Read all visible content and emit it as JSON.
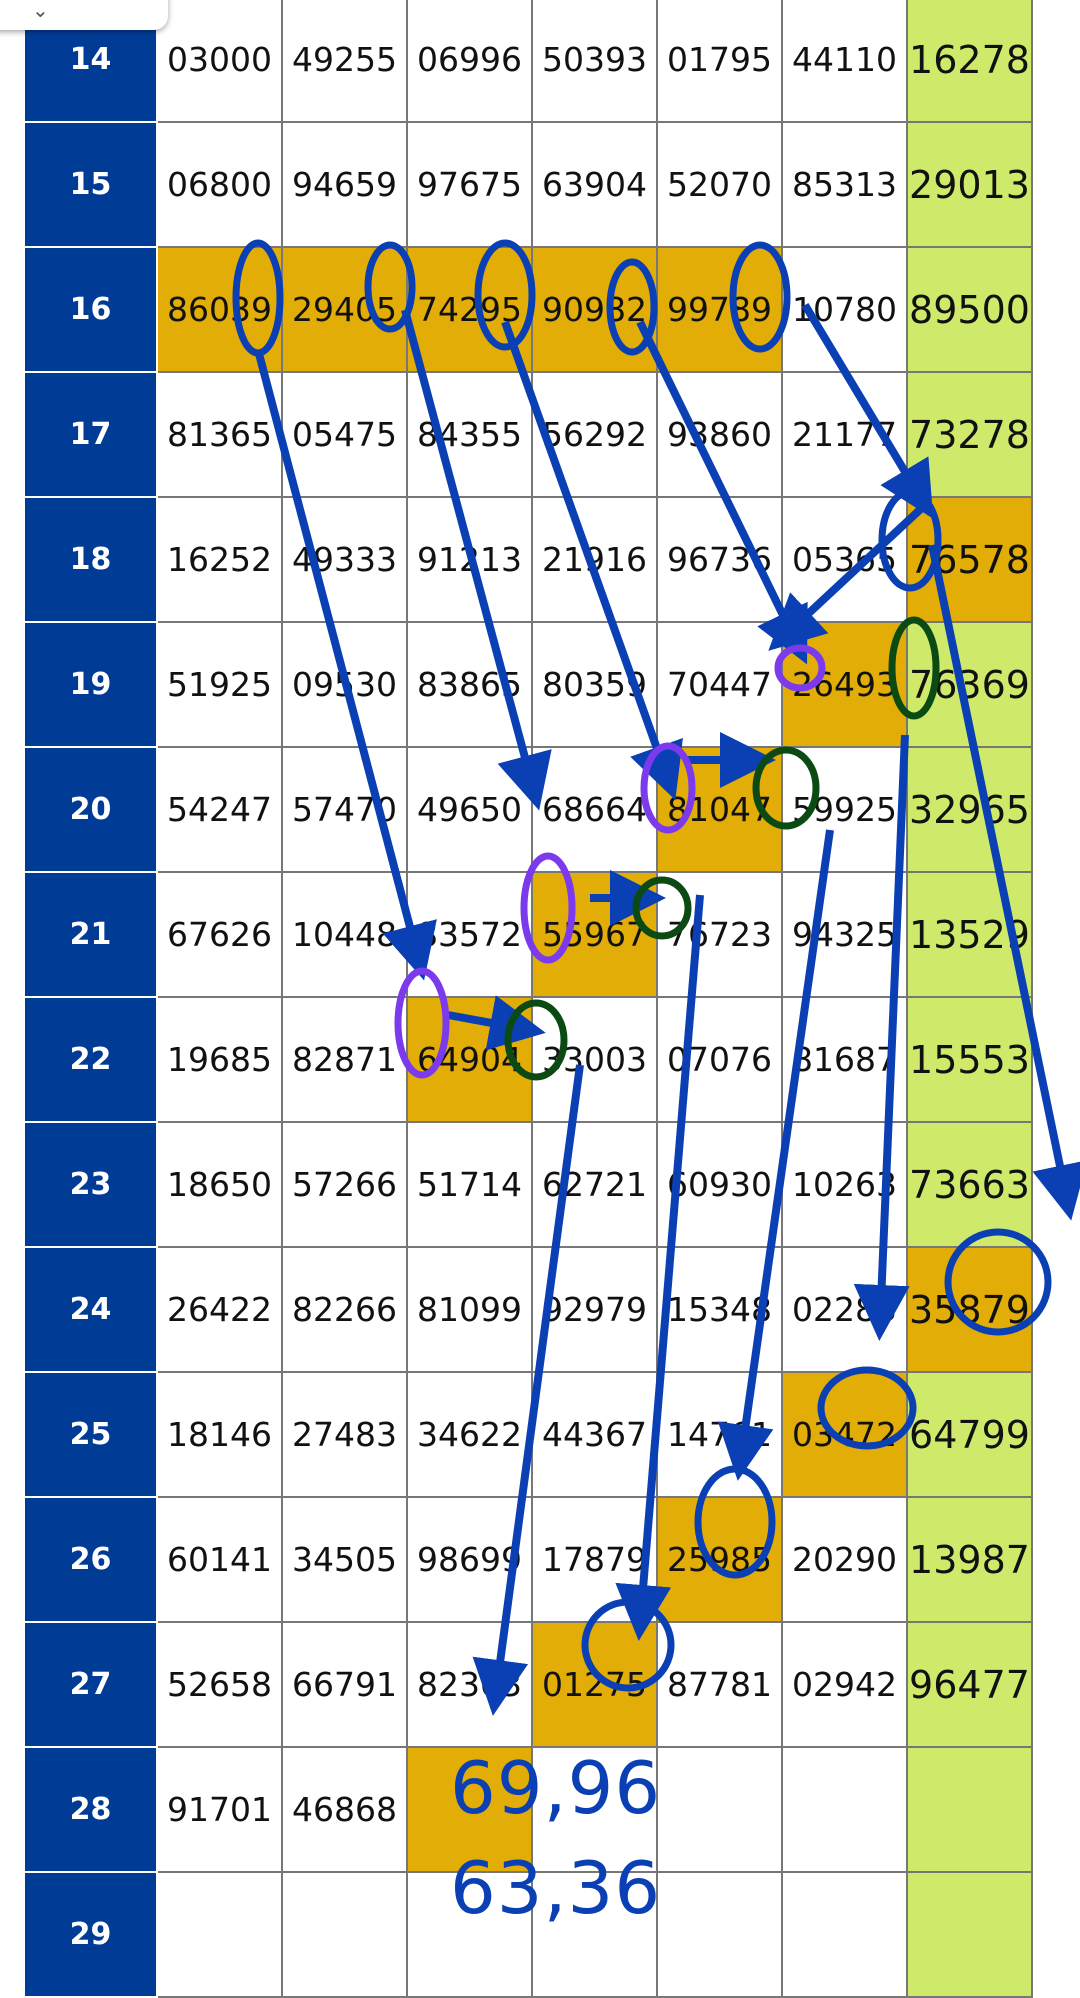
{
  "colors": {
    "row_header": "#003C96",
    "result_column": "#CFEA6B",
    "highlight": "#E2AD06",
    "arrow_blue": "#0B40B5",
    "circle_purple": "#7C3AED",
    "circle_green": "#0B4A12"
  },
  "overlay_icon": "chevron-down-icon",
  "rows": [
    {
      "label": "14",
      "values": [
        "03000",
        "49255",
        "06996",
        "50393",
        "01795",
        "44110",
        "16278"
      ],
      "highlight": []
    },
    {
      "label": "15",
      "values": [
        "06800",
        "94659",
        "97675",
        "63904",
        "52070",
        "85313",
        "29013"
      ],
      "highlight": []
    },
    {
      "label": "16",
      "values": [
        "86039",
        "29405",
        "74295",
        "90982",
        "99789",
        "10780",
        "89500"
      ],
      "highlight": [
        0,
        1,
        2,
        3,
        4
      ]
    },
    {
      "label": "17",
      "values": [
        "81365",
        "05475",
        "84355",
        "56292",
        "93860",
        "21177",
        "73278"
      ],
      "highlight": []
    },
    {
      "label": "18",
      "values": [
        "16252",
        "49333",
        "91213",
        "21916",
        "96736",
        "05365",
        "76578"
      ],
      "highlight": [
        6
      ]
    },
    {
      "label": "19",
      "values": [
        "51925",
        "09530",
        "83865",
        "80359",
        "70447",
        "26493",
        "76369"
      ],
      "highlight": [
        5
      ]
    },
    {
      "label": "20",
      "values": [
        "54247",
        "57470",
        "49650",
        "68664",
        "81047",
        "59925",
        "32965"
      ],
      "highlight": [
        4
      ]
    },
    {
      "label": "21",
      "values": [
        "67626",
        "10448",
        "83572",
        "55967",
        "76723",
        "94325",
        "13529"
      ],
      "highlight": [
        3
      ]
    },
    {
      "label": "22",
      "values": [
        "19685",
        "82871",
        "64904",
        "33003",
        "07076",
        "81687",
        "15553"
      ],
      "highlight": [
        2
      ]
    },
    {
      "label": "23",
      "values": [
        "18650",
        "57266",
        "51714",
        "62721",
        "60930",
        "10263",
        "73663"
      ],
      "highlight": []
    },
    {
      "label": "24",
      "values": [
        "26422",
        "82266",
        "81099",
        "92979",
        "15348",
        "02283",
        "35879"
      ],
      "highlight": [
        6
      ]
    },
    {
      "label": "25",
      "values": [
        "18146",
        "27483",
        "34622",
        "44367",
        "14761",
        "03472",
        "64799"
      ],
      "highlight": [
        5
      ]
    },
    {
      "label": "26",
      "values": [
        "60141",
        "34505",
        "98699",
        "17879",
        "25985",
        "20290",
        "13987"
      ],
      "highlight": [
        4
      ]
    },
    {
      "label": "27",
      "values": [
        "52658",
        "66791",
        "82303",
        "01275",
        "87781",
        "02942",
        "96477"
      ],
      "highlight": [
        3
      ]
    },
    {
      "label": "28",
      "values": [
        "91701",
        "46868",
        "",
        "",
        "",
        "",
        ""
      ],
      "highlight": [
        2
      ]
    },
    {
      "label": "29",
      "values": [
        "",
        "",
        "",
        "",
        "",
        "",
        ""
      ],
      "highlight": []
    }
  ],
  "predictions": [
    "69,96",
    "63,36"
  ]
}
